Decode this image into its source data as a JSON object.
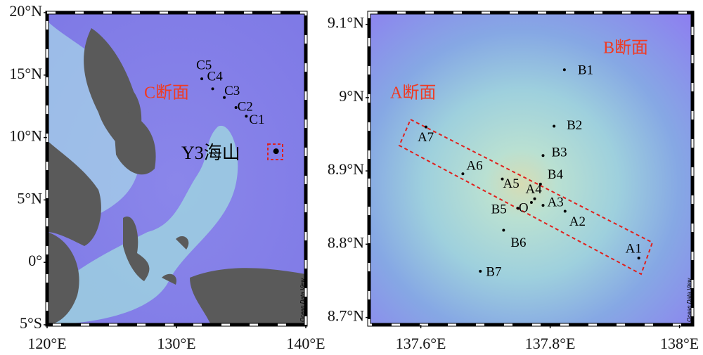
{
  "panels": [
    {
      "xlim": [
        120,
        140
      ],
      "ylim": [
        -5,
        20
      ],
      "xticks": [
        {
          "value": 120,
          "label": "120°E"
        },
        {
          "value": 130,
          "label": "130°E"
        },
        {
          "value": 140,
          "label": "140°E"
        }
      ],
      "yticks": [
        {
          "value": 20,
          "label": "20°N"
        },
        {
          "value": 15,
          "label": "15°N"
        },
        {
          "value": 10,
          "label": "10°N"
        },
        {
          "value": 5,
          "label": "5°N"
        },
        {
          "value": 0,
          "label": "0°"
        },
        {
          "value": -5,
          "label": "5°S"
        }
      ],
      "stations": [
        {
          "name": "C5",
          "lon": 131.96,
          "lat": 14.7
        },
        {
          "name": "C4",
          "lon": 132.8,
          "lat": 13.9
        },
        {
          "name": "C3",
          "lon": 133.7,
          "lat": 13.2
        },
        {
          "name": "C2",
          "lon": 134.6,
          "lat": 12.4
        },
        {
          "name": "C1",
          "lon": 135.4,
          "lat": 11.7
        }
      ],
      "seamount": {
        "lon": 137.7,
        "lat": 8.9
      },
      "labels": [
        "C断面",
        "Y3海山"
      ],
      "watermark": "Ocean Data View"
    },
    {
      "xlim": [
        137.52,
        138.02
      ],
      "ylim": [
        8.69,
        9.116
      ],
      "xticks": [
        {
          "value": 137.6,
          "label": "137.6°E"
        },
        {
          "value": 137.8,
          "label": "137.8°E"
        },
        {
          "value": 138,
          "label": "138°E"
        }
      ],
      "yticks": [
        {
          "value": 9.1,
          "label": "9.1°N"
        },
        {
          "value": 9,
          "label": "9°N"
        },
        {
          "value": 8.9,
          "label": "8.9°N"
        },
        {
          "value": 8.8,
          "label": "8.8°N"
        },
        {
          "value": 8.7,
          "label": "8.7°N"
        }
      ],
      "stations": [
        {
          "name": "B1",
          "lon": 137.822,
          "lat": 9.038
        },
        {
          "name": "B2",
          "lon": 137.806,
          "lat": 8.961
        },
        {
          "name": "B3",
          "lon": 137.789,
          "lat": 8.921
        },
        {
          "name": "B4",
          "lon": 137.785,
          "lat": 8.882
        },
        {
          "name": "A7",
          "lon": 137.608,
          "lat": 8.96
        },
        {
          "name": "A6",
          "lon": 137.665,
          "lat": 8.896
        },
        {
          "name": "A5",
          "lon": 137.726,
          "lat": 8.889
        },
        {
          "name": "A4",
          "lon": 137.776,
          "lat": 8.862
        },
        {
          "name": "O",
          "lon": 137.771,
          "lat": 8.857
        },
        {
          "name": "A3",
          "lon": 137.789,
          "lat": 8.853
        },
        {
          "name": "A2",
          "lon": 137.823,
          "lat": 8.845
        },
        {
          "name": "A1",
          "lon": 137.937,
          "lat": 8.781
        },
        {
          "name": "B5",
          "lon": 137.75,
          "lat": 8.849
        },
        {
          "name": "B6",
          "lon": 137.728,
          "lat": 8.819
        },
        {
          "name": "B7",
          "lon": 137.692,
          "lat": 8.763
        }
      ],
      "labels": [
        "A断面",
        "B断面"
      ],
      "watermark": "Ocean Data View"
    }
  ]
}
